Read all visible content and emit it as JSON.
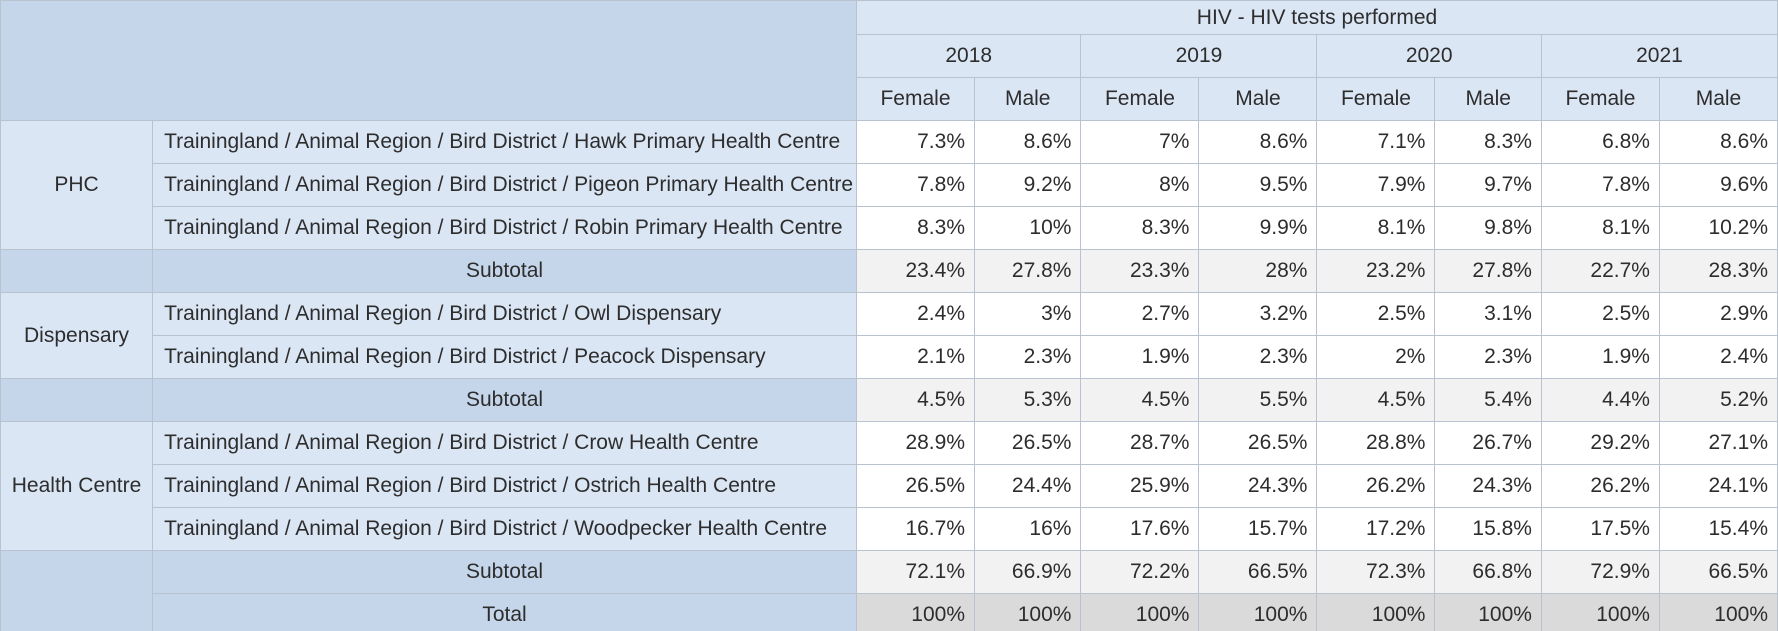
{
  "table": {
    "title": "HIV - HIV tests performed",
    "years": [
      "2018",
      "2019",
      "2020",
      "2021"
    ],
    "sexes": [
      "Female",
      "Male"
    ],
    "groups": [
      {
        "name": "PHC",
        "rows": [
          {
            "label": "Trainingland / Animal Region / Bird District / Hawk Primary Health Centre",
            "values": [
              "7.3%",
              "8.6%",
              "7%",
              "8.6%",
              "7.1%",
              "8.3%",
              "6.8%",
              "8.6%"
            ]
          },
          {
            "label": "Trainingland / Animal Region / Bird District / Pigeon Primary Health Centre",
            "values": [
              "7.8%",
              "9.2%",
              "8%",
              "9.5%",
              "7.9%",
              "9.7%",
              "7.8%",
              "9.6%"
            ]
          },
          {
            "label": "Trainingland / Animal Region / Bird District / Robin Primary Health Centre",
            "values": [
              "8.3%",
              "10%",
              "8.3%",
              "9.9%",
              "8.1%",
              "9.8%",
              "8.1%",
              "10.2%"
            ]
          }
        ],
        "subtotal": {
          "label": "Subtotal",
          "values": [
            "23.4%",
            "27.8%",
            "23.3%",
            "28%",
            "23.2%",
            "27.8%",
            "22.7%",
            "28.3%"
          ]
        }
      },
      {
        "name": "Dispensary",
        "rows": [
          {
            "label": "Trainingland / Animal Region / Bird District / Owl Dispensary",
            "values": [
              "2.4%",
              "3%",
              "2.7%",
              "3.2%",
              "2.5%",
              "3.1%",
              "2.5%",
              "2.9%"
            ]
          },
          {
            "label": "Trainingland / Animal Region / Bird District / Peacock Dispensary",
            "values": [
              "2.1%",
              "2.3%",
              "1.9%",
              "2.3%",
              "2%",
              "2.3%",
              "1.9%",
              "2.4%"
            ]
          }
        ],
        "subtotal": {
          "label": "Subtotal",
          "values": [
            "4.5%",
            "5.3%",
            "4.5%",
            "5.5%",
            "4.5%",
            "5.4%",
            "4.4%",
            "5.2%"
          ]
        }
      },
      {
        "name": "Health Centre",
        "rows": [
          {
            "label": "Trainingland / Animal Region / Bird District / Crow Health Centre",
            "values": [
              "28.9%",
              "26.5%",
              "28.7%",
              "26.5%",
              "28.8%",
              "26.7%",
              "29.2%",
              "27.1%"
            ]
          },
          {
            "label": "Trainingland / Animal Region / Bird District / Ostrich Health Centre",
            "values": [
              "26.5%",
              "24.4%",
              "25.9%",
              "24.3%",
              "26.2%",
              "24.3%",
              "26.2%",
              "24.1%"
            ]
          },
          {
            "label": "Trainingland / Animal Region / Bird District / Woodpecker Health Centre",
            "values": [
              "16.7%",
              "16%",
              "17.6%",
              "15.7%",
              "17.2%",
              "15.8%",
              "17.5%",
              "15.4%"
            ]
          }
        ],
        "subtotal": {
          "label": "Subtotal",
          "values": [
            "72.1%",
            "66.9%",
            "72.2%",
            "66.5%",
            "72.3%",
            "66.8%",
            "72.9%",
            "66.5%"
          ]
        }
      }
    ],
    "total": {
      "label": "Total",
      "values": [
        "100%",
        "100%",
        "100%",
        "100%",
        "100%",
        "100%",
        "100%",
        "100%"
      ]
    }
  },
  "colors": {
    "header_bg": "#dbe6f5",
    "corner_bg": "#c5d5ea",
    "subtotal_bg": "#f2f2f2",
    "total_bg": "#dadada",
    "border": "#b9c2cf"
  }
}
